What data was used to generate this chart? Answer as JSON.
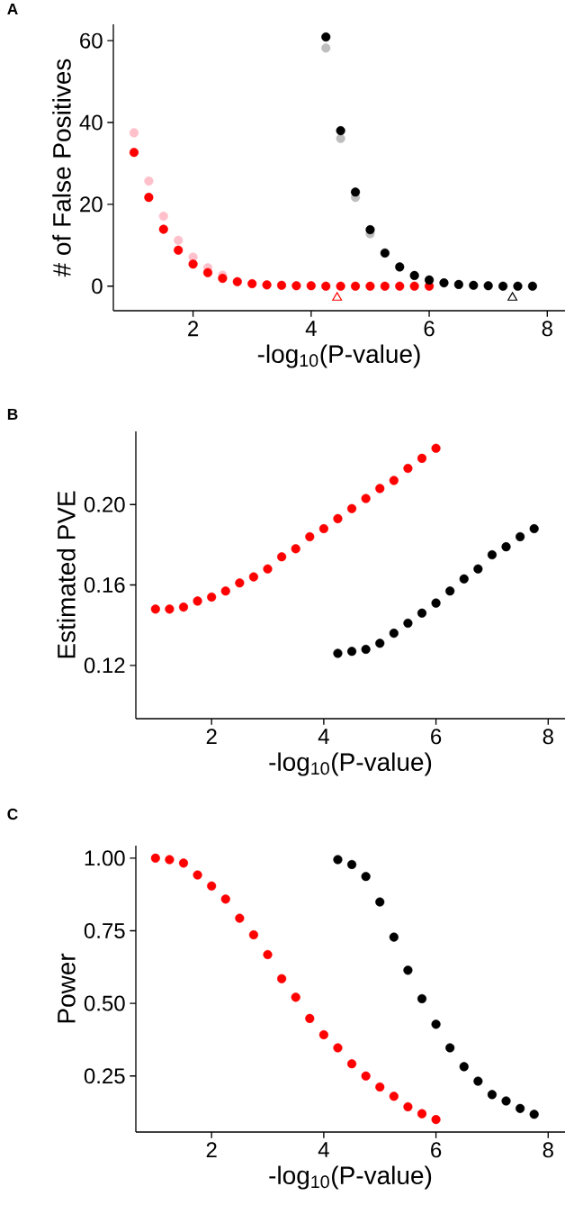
{
  "chart_data": [
    {
      "type": "scatter",
      "title": "A",
      "xlabel": "-log$_{10}$(P-value)",
      "ylabel": "# of False Positives",
      "marker": "circle",
      "xlim": [
        0.65,
        8.3
      ],
      "ylim": [
        -6,
        64
      ],
      "xticks": [
        2,
        4,
        6,
        8
      ],
      "yticks": [
        0,
        20,
        40,
        60
      ],
      "series": [
        {
          "color": "#ffc0cb",
          "x": [
            1,
            1.25,
            1.5,
            1.75,
            2,
            2.25,
            2.5
          ],
          "values": [
            37.5,
            25.7,
            17.1,
            11.2,
            7.1,
            4.5,
            2.7
          ]
        },
        {
          "color": "#ff0000",
          "x": [
            1,
            1.25,
            1.5,
            1.75,
            2,
            2.25,
            2.5,
            2.75,
            3,
            3.25,
            3.5,
            3.75,
            4,
            4.25,
            4.5,
            4.75,
            5,
            5.25,
            5.5,
            5.75,
            6
          ],
          "values": [
            32.7,
            21.7,
            13.9,
            8.8,
            5.4,
            3.3,
            1.9,
            1.1,
            0.6,
            0.3,
            0.2,
            0.1,
            0.1,
            0,
            0,
            0,
            0,
            0,
            0,
            0,
            0
          ]
        },
        {
          "color": "#bebebe",
          "x": [
            4.25,
            4.5,
            4.75,
            5
          ],
          "values": [
            58.2,
            36.1,
            21.7,
            12.8
          ]
        },
        {
          "color": "#000000",
          "x": [
            4.25,
            4.5,
            4.75,
            5,
            5.25,
            5.5,
            5.75,
            6,
            6.25,
            6.5,
            6.75,
            7,
            7.25,
            7.5,
            7.75
          ],
          "values": [
            60.9,
            38.0,
            23.0,
            13.8,
            8.1,
            4.7,
            2.6,
            1.5,
            0.8,
            0.4,
            0.2,
            0.1,
            0,
            0,
            0
          ]
        },
        {
          "color": "#ff0000",
          "marker": "triangle",
          "x": [
            4.44
          ],
          "values": [
            -2.8
          ]
        },
        {
          "color": "#000000",
          "marker": "triangle",
          "x": [
            7.41
          ],
          "values": [
            -2.8
          ]
        }
      ]
    },
    {
      "type": "scatter",
      "title": "B",
      "xlabel": "-log$_{10}$(P-value)",
      "ylabel": "Estimated PVE",
      "marker": "circle",
      "xlim": [
        0.65,
        8.3
      ],
      "ylim": [
        0.0935,
        0.2364
      ],
      "xticks": [
        2,
        4,
        6,
        8
      ],
      "yticks": [
        {
          "value": 0.12,
          "label": "0.12"
        },
        {
          "value": 0.16,
          "label": "0.16"
        },
        {
          "value": 0.2,
          "label": "0.20"
        }
      ],
      "series": [
        {
          "color": "#ff0000",
          "x": [
            1,
            1.25,
            1.5,
            1.75,
            2,
            2.25,
            2.5,
            2.75,
            3,
            3.25,
            3.5,
            3.75,
            4,
            4.25,
            4.5,
            4.75,
            5,
            5.25,
            5.5,
            5.75,
            6
          ],
          "values": [
            0.148,
            0.148,
            0.149,
            0.152,
            0.154,
            0.157,
            0.161,
            0.164,
            0.168,
            0.174,
            0.178,
            0.184,
            0.188,
            0.193,
            0.198,
            0.203,
            0.208,
            0.212,
            0.218,
            0.223,
            0.228
          ]
        },
        {
          "color": "#000000",
          "x": [
            4.25,
            4.5,
            4.75,
            5,
            5.25,
            5.5,
            5.75,
            6,
            6.25,
            6.5,
            6.75,
            7,
            7.25,
            7.5,
            7.75
          ],
          "values": [
            0.126,
            0.127,
            0.128,
            0.131,
            0.136,
            0.141,
            0.146,
            0.151,
            0.157,
            0.163,
            0.168,
            0.175,
            0.179,
            0.184,
            0.188
          ]
        }
      ]
    },
    {
      "type": "scatter",
      "title": "C",
      "xlabel": "-log$_{10}$(P-value)",
      "ylabel": "Power",
      "marker": "circle",
      "xlim": [
        0.65,
        8.3
      ],
      "ylim": [
        0.057,
        1.043
      ],
      "xticks": [
        2,
        4,
        6,
        8
      ],
      "yticks": [
        {
          "value": 0.25,
          "label": "0.25"
        },
        {
          "value": 0.5,
          "label": "0.50"
        },
        {
          "value": 0.75,
          "label": "0.75"
        },
        {
          "value": 1,
          "label": "1.00"
        }
      ],
      "series": [
        {
          "color": "#ff0000",
          "x": [
            1,
            1.25,
            1.5,
            1.75,
            2,
            2.25,
            2.5,
            2.75,
            3,
            3.25,
            3.5,
            3.75,
            4,
            4.25,
            4.5,
            4.75,
            5,
            5.25,
            5.5,
            5.75,
            6
          ],
          "values": [
            1.0,
            0.995,
            0.983,
            0.942,
            0.904,
            0.859,
            0.793,
            0.736,
            0.668,
            0.585,
            0.521,
            0.448,
            0.392,
            0.347,
            0.292,
            0.25,
            0.212,
            0.18,
            0.144,
            0.12,
            0.1
          ]
        },
        {
          "color": "#000000",
          "x": [
            4.25,
            4.5,
            4.75,
            5,
            5.25,
            5.5,
            5.75,
            6,
            6.25,
            6.5,
            6.75,
            7,
            7.25,
            7.5,
            7.75
          ],
          "values": [
            0.995,
            0.978,
            0.937,
            0.849,
            0.728,
            0.614,
            0.516,
            0.428,
            0.347,
            0.282,
            0.232,
            0.186,
            0.164,
            0.138,
            0.118
          ]
        }
      ]
    }
  ]
}
